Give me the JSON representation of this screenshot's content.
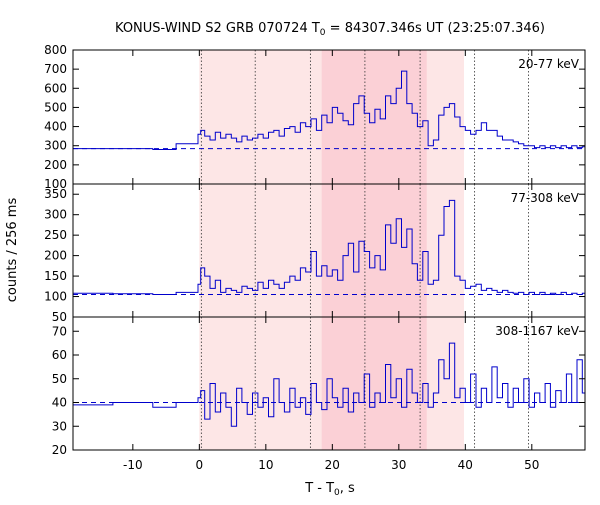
{
  "title_parts": {
    "prefix": "KONUS-WIND S2 GRB 070724 T",
    "sub": "0",
    "suffix": " = 84307.346s UT (23:25:07.346)"
  },
  "y_axis_label": "counts / 256 ms",
  "x_axis_label_parts": {
    "prefix": "T - T",
    "sub": "0",
    "suffix": ", s"
  },
  "colors": {
    "trace": "#0000cc",
    "background_fit": "#0000cc",
    "shade_light": "#fde6e6",
    "shade_dark": "#fbd0d6",
    "vline": "#333333",
    "axis": "#000000"
  },
  "chart_data": {
    "type": "line",
    "shared_x_axis": {
      "label": "T - T0, s",
      "range": [
        -19,
        58
      ],
      "ticks": [
        -10,
        0,
        10,
        20,
        30,
        40,
        50
      ]
    },
    "shaded_intervals": [
      {
        "range": [
          0.0,
          39.8
        ],
        "shade": "light"
      },
      {
        "range": [
          18.4,
          34.2
        ],
        "shade": "dark"
      }
    ],
    "vertical_markers": [
      0.3,
      8.4,
      16.7,
      24.9,
      33.2,
      41.4,
      49.5
    ],
    "panels": [
      {
        "energy_label": "20-77 keV",
        "ylim": [
          100,
          800
        ],
        "yticks": [
          100,
          200,
          300,
          400,
          500,
          600,
          700,
          800
        ],
        "background_level": 285,
        "series": [
          {
            "x": [
              -19.0,
              -13.0,
              -7.0,
              -3.5,
              -0.2,
              0.2,
              0.8,
              1.6,
              2.4,
              3.2,
              4.0,
              4.8,
              5.6,
              6.4,
              7.2,
              8.0,
              8.8,
              9.6,
              10.4,
              11.2,
              12.0,
              12.8,
              13.6,
              14.4,
              15.2,
              16.0,
              16.8,
              17.6,
              18.4,
              19.2,
              20.0,
              20.8,
              21.6,
              22.4,
              23.2,
              24.0,
              24.8,
              25.6,
              26.4,
              27.2,
              28.0,
              28.8,
              29.6,
              30.4,
              31.2,
              32.0,
              32.8,
              33.6,
              34.4,
              35.2,
              36.0,
              36.8,
              37.6,
              38.4,
              39.2,
              40.0,
              40.8,
              41.6,
              42.4,
              43.2,
              44.0,
              44.8,
              45.6,
              46.4,
              47.2,
              48.0,
              48.8,
              49.6,
              50.4,
              51.2,
              52.0,
              52.8,
              53.6,
              54.4,
              55.2,
              56.0,
              56.8,
              57.6
            ],
            "y": [
              285,
              285,
              280,
              310,
              360,
              380,
              350,
              330,
              370,
              340,
              360,
              340,
              320,
              350,
              330,
              340,
              360,
              340,
              370,
              380,
              350,
              390,
              400,
              370,
              420,
              400,
              440,
              380,
              460,
              420,
              500,
              470,
              430,
              410,
              520,
              560,
              470,
              420,
              490,
              440,
              560,
              520,
              600,
              690,
              520,
              470,
              400,
              430,
              300,
              330,
              460,
              500,
              520,
              450,
              400,
              380,
              360,
              380,
              420,
              380,
              380,
              350,
              330,
              330,
              320,
              310,
              300,
              300,
              290,
              300,
              290,
              300,
              290,
              300,
              290,
              300,
              290,
              295
            ]
          }
        ]
      },
      {
        "energy_label": "77-308 keV",
        "ylim": [
          50,
          375
        ],
        "yticks": [
          50,
          100,
          150,
          200,
          250,
          300,
          350
        ],
        "background_level": 105,
        "series": [
          {
            "x": [
              -19.0,
              -13.0,
              -7.0,
              -3.5,
              -0.2,
              0.2,
              0.8,
              1.6,
              2.4,
              3.2,
              4.0,
              4.8,
              5.6,
              6.4,
              7.2,
              8.0,
              8.8,
              9.6,
              10.4,
              11.2,
              12.0,
              12.8,
              13.6,
              14.4,
              15.2,
              16.0,
              16.8,
              17.6,
              18.4,
              19.2,
              20.0,
              20.8,
              21.6,
              22.4,
              23.2,
              24.0,
              24.8,
              25.6,
              26.4,
              27.2,
              28.0,
              28.8,
              29.6,
              30.4,
              31.2,
              32.0,
              32.8,
              33.6,
              34.4,
              35.2,
              36.0,
              36.8,
              37.6,
              38.4,
              39.2,
              40.0,
              40.8,
              41.6,
              42.4,
              43.2,
              44.0,
              44.8,
              45.6,
              46.4,
              47.2,
              48.0,
              48.8,
              49.6,
              50.4,
              51.2,
              52.0,
              52.8,
              53.6,
              54.4,
              55.2,
              56.0,
              56.8,
              57.6
            ],
            "y": [
              108,
              107,
              105,
              110,
              130,
              170,
              150,
              120,
              140,
              110,
              120,
              115,
              110,
              125,
              120,
              115,
              135,
              120,
              140,
              130,
              120,
              135,
              150,
              140,
              170,
              160,
              210,
              150,
              175,
              150,
              165,
              140,
              200,
              230,
              160,
              235,
              210,
              170,
              200,
              165,
              275,
              230,
              290,
              220,
              265,
              180,
              140,
              210,
              130,
              140,
              250,
              320,
              335,
              150,
              140,
              120,
              125,
              130,
              115,
              120,
              115,
              110,
              115,
              110,
              108,
              110,
              105,
              110,
              105,
              110,
              105,
              108,
              105,
              110,
              105,
              108,
              105,
              108
            ]
          }
        ]
      },
      {
        "energy_label": "308-1167 keV",
        "ylim": [
          20,
          76
        ],
        "yticks": [
          20,
          30,
          40,
          50,
          60,
          70
        ],
        "background_level": 40,
        "series": [
          {
            "x": [
              -19.0,
              -13.0,
              -7.0,
              -3.5,
              -0.2,
              0.2,
              0.8,
              1.6,
              2.4,
              3.2,
              4.0,
              4.8,
              5.6,
              6.4,
              7.2,
              8.0,
              8.8,
              9.6,
              10.4,
              11.2,
              12.0,
              12.8,
              13.6,
              14.4,
              15.2,
              16.0,
              16.8,
              17.6,
              18.4,
              19.2,
              20.0,
              20.8,
              21.6,
              22.4,
              23.2,
              24.0,
              24.8,
              25.6,
              26.4,
              27.2,
              28.0,
              28.8,
              29.6,
              30.4,
              31.2,
              32.0,
              32.8,
              33.6,
              34.4,
              35.2,
              36.0,
              36.8,
              37.6,
              38.4,
              39.2,
              40.0,
              40.8,
              41.6,
              42.4,
              43.2,
              44.0,
              44.8,
              45.6,
              46.4,
              47.2,
              48.0,
              48.8,
              49.6,
              50.4,
              51.2,
              52.0,
              52.8,
              53.6,
              54.4,
              55.2,
              56.0,
              56.8,
              57.6
            ],
            "y": [
              39,
              40,
              38,
              40,
              42,
              45,
              33,
              48,
              36,
              44,
              38,
              30,
              46,
              40,
              35,
              44,
              38,
              42,
              34,
              50,
              40,
              36,
              46,
              38,
              42,
              35,
              48,
              40,
              37,
              50,
              42,
              38,
              46,
              36,
              44,
              40,
              52,
              38,
              44,
              40,
              56,
              42,
              50,
              38,
              54,
              44,
              40,
              48,
              38,
              44,
              58,
              50,
              65,
              42,
              46,
              40,
              52,
              38,
              46,
              40,
              55,
              42,
              48,
              38,
              46,
              40,
              50,
              38,
              44,
              40,
              48,
              38,
              45,
              40,
              52,
              40,
              58,
              44
            ]
          }
        ]
      }
    ]
  }
}
